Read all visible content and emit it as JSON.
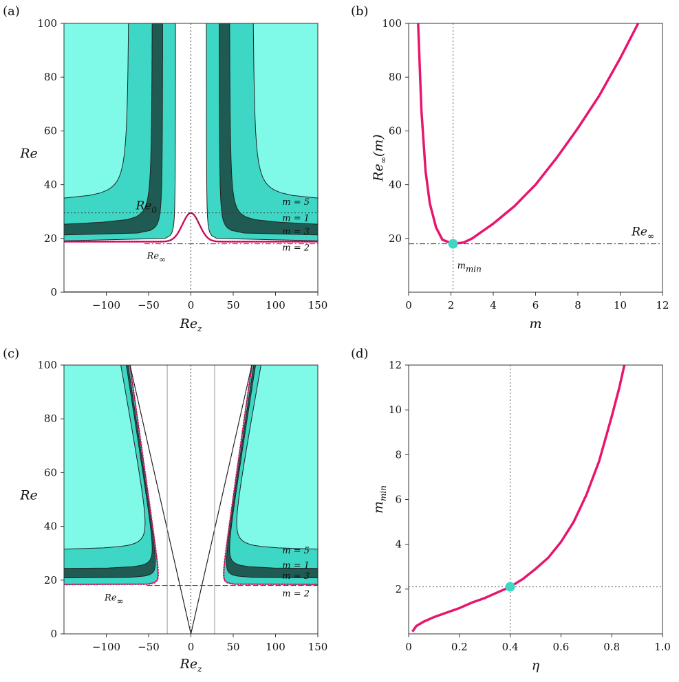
{
  "colors": {
    "light": "#7ffae9",
    "mid": "#3ed6c4",
    "dark": "#1f5b52",
    "magenta": "#e8156e",
    "marker": "#3ed6c4"
  },
  "chart_data": [
    {
      "id": "a",
      "panel_label": "(a)",
      "type": "heatmap",
      "xlabel": "Re",
      "xlabel_sub": "z",
      "ylabel": "Re",
      "xlim": [
        -150,
        150
      ],
      "ylim": [
        0,
        100
      ],
      "xticks": [
        -100,
        -50,
        0,
        50,
        100,
        150
      ],
      "xtick_labels": [
        "−100",
        "−50",
        "0",
        "50",
        "100",
        "150"
      ],
      "yticks": [
        0,
        20,
        40,
        60,
        80,
        100
      ],
      "ytick_labels": [
        "0",
        "20",
        "40",
        "60",
        "80",
        "100"
      ],
      "regions": [
        {
          "mode": "m = 5",
          "asymptote_Re": 33.5,
          "inner_Rez": 75
        },
        {
          "mode": "m = 1",
          "asymptote_Re": 25,
          "inner_Rez": 45
        },
        {
          "mode": "m = 3",
          "asymptote_Re": 21,
          "inner_Rez": 35
        },
        {
          "mode": "m = 2",
          "asymptote_Re": 18.8,
          "inner_Rez": 20
        }
      ],
      "Re0": 29.5,
      "Re_inf": 18,
      "mode_labels": [
        "m = 5",
        "m = 1",
        "m = 3",
        "m = 2"
      ],
      "annotations": {
        "re0": "Re",
        "re0_sub": "0",
        "reinf": "Re",
        "reinf_sub": "∞"
      }
    },
    {
      "id": "b",
      "panel_label": "(b)",
      "type": "line",
      "xlabel": "m",
      "ylabel": "Re",
      "ylabel_sub": "∞",
      "ylabel_tail": "(m)",
      "xlim": [
        0,
        12
      ],
      "ylim": [
        0,
        100
      ],
      "xticks": [
        0,
        2,
        4,
        6,
        8,
        10,
        12
      ],
      "xtick_labels": [
        "0",
        "2",
        "4",
        "6",
        "8",
        "10",
        "12"
      ],
      "yticks": [
        20,
        40,
        60,
        80,
        100
      ],
      "ytick_labels": [
        "20",
        "40",
        "60",
        "80",
        "100"
      ],
      "series": [
        {
          "x": [
            0.45,
            0.6,
            0.8,
            1.0,
            1.3,
            1.6,
            2.1,
            2.6,
            3.0,
            4.0,
            5.0,
            6.0,
            7.0,
            8.0,
            9.0,
            10.0,
            10.85
          ],
          "y": [
            100,
            68,
            45,
            33,
            24,
            19.5,
            18,
            18.5,
            20,
            25.5,
            32,
            40,
            50,
            61,
            73,
            87,
            100
          ]
        }
      ],
      "marker": {
        "x": 2.1,
        "y": 18
      },
      "Re_inf": 18,
      "m_min": 2.1,
      "annotations": {
        "reinf": "Re",
        "reinf_sub": "∞",
        "mmin": "m",
        "mmin_sub": "min"
      }
    },
    {
      "id": "c",
      "panel_label": "(c)",
      "type": "heatmap",
      "xlabel": "Re",
      "xlabel_sub": "z",
      "ylabel": "Re",
      "xlim": [
        -150,
        150
      ],
      "ylim": [
        0,
        100
      ],
      "xticks": [
        -100,
        -50,
        0,
        50,
        100,
        150
      ],
      "xtick_labels": [
        "−100",
        "−50",
        "0",
        "50",
        "100",
        "150"
      ],
      "yticks": [
        0,
        20,
        40,
        60,
        80,
        100
      ],
      "ytick_labels": [
        "0",
        "20",
        "40",
        "60",
        "80",
        "100"
      ],
      "regions": [
        {
          "mode": "m = 5",
          "asymptote_Re": 31
        },
        {
          "mode": "m = 1",
          "asymptote_Re": 24
        },
        {
          "mode": "m = 3",
          "asymptote_Re": 20.5
        },
        {
          "mode": "m = 2",
          "asymptote_Re": 18
        }
      ],
      "Re_inf": 18,
      "vertical_lines_Rez": [
        -28,
        28
      ],
      "mode_labels": [
        "m = 5",
        "m = 1",
        "m = 3",
        "m = 2"
      ],
      "annotations": {
        "reinf": "Re",
        "reinf_sub": "∞"
      }
    },
    {
      "id": "d",
      "panel_label": "(d)",
      "type": "line",
      "xlabel": "η",
      "ylabel": "m",
      "ylabel_sub": "min",
      "xlim": [
        0,
        1.0
      ],
      "ylim": [
        0,
        12
      ],
      "xticks": [
        0,
        0.2,
        0.4,
        0.6,
        0.8,
        1.0
      ],
      "xtick_labels": [
        "0",
        "0.2",
        "0.4",
        "0.6",
        "0.8",
        "1.0"
      ],
      "yticks": [
        2,
        4,
        6,
        8,
        10,
        12
      ],
      "ytick_labels": [
        "2",
        "4",
        "6",
        "8",
        "10",
        "12"
      ],
      "series": [
        {
          "x": [
            0.015,
            0.03,
            0.06,
            0.1,
            0.15,
            0.2,
            0.25,
            0.3,
            0.35,
            0.4,
            0.45,
            0.5,
            0.55,
            0.6,
            0.65,
            0.7,
            0.75,
            0.8,
            0.83,
            0.85
          ],
          "y": [
            0.1,
            0.35,
            0.55,
            0.75,
            0.95,
            1.15,
            1.4,
            1.6,
            1.85,
            2.1,
            2.45,
            2.9,
            3.4,
            4.1,
            5.0,
            6.2,
            7.7,
            9.7,
            11.0,
            12.0
          ]
        }
      ],
      "marker": {
        "x": 0.4,
        "y": 2.1
      }
    }
  ]
}
